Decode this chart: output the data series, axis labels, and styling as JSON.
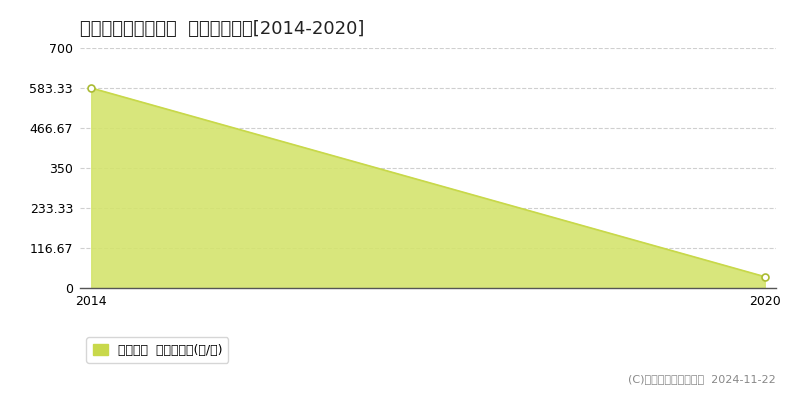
{
  "title": "東蒲原郡阿賀町行地  林地価格推移[2014-2020]",
  "x": [
    2014,
    2020
  ],
  "y": [
    583.33,
    33.0
  ],
  "ylim": [
    0,
    700
  ],
  "yticks": [
    0,
    116.67,
    233.33,
    350,
    466.67,
    583.33,
    700
  ],
  "ytick_labels": [
    "0",
    "116.67",
    "233.33",
    "350",
    "466.67",
    "583.33",
    "700"
  ],
  "xticks": [
    2014,
    2020
  ],
  "line_color": "#c8d84a",
  "fill_color": "#d4e46e",
  "fill_alpha": 0.9,
  "marker_color": "#ffffff",
  "marker_edge_color": "#aabb33",
  "marker_size": 5,
  "line_width": 1.2,
  "grid_color": "#bbbbbb",
  "grid_style": "--",
  "grid_alpha": 0.7,
  "background_color": "#ffffff",
  "legend_label": "林地価格  平均坪単価(円/坪)",
  "legend_marker_color": "#c8d84a",
  "copyright_text": "(C)土地価格ドットコム  2024-11-22",
  "title_fontsize": 13,
  "tick_fontsize": 9,
  "legend_fontsize": 9,
  "copyright_fontsize": 8
}
